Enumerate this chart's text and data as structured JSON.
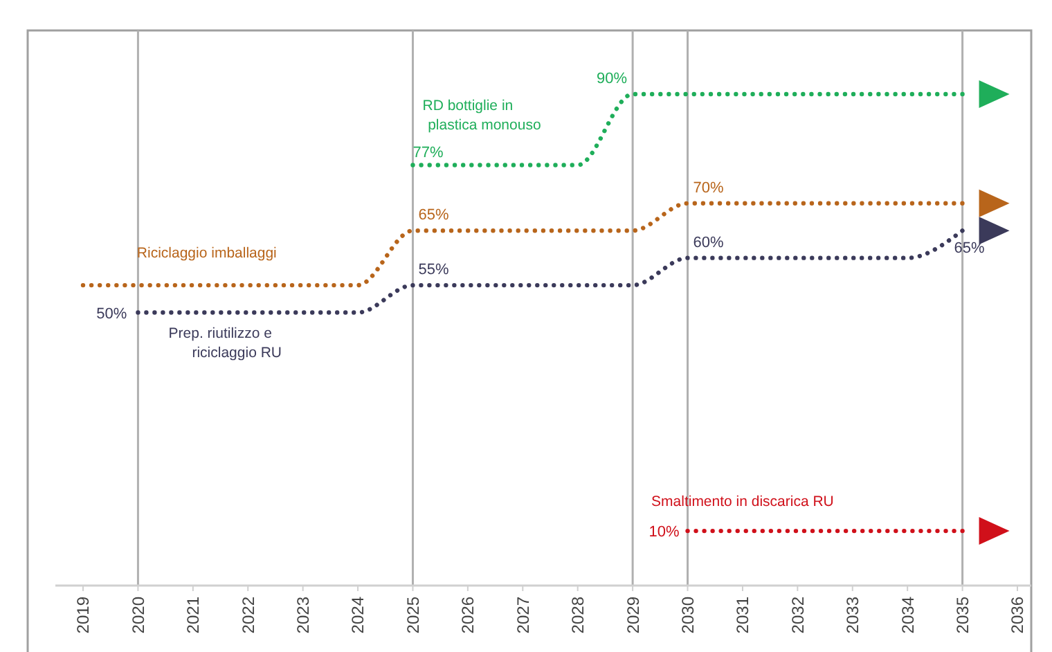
{
  "chart_data": {
    "type": "line",
    "categories": [
      "2019",
      "2020",
      "2021",
      "2022",
      "2023",
      "2024",
      "2025",
      "2026",
      "2027",
      "2028",
      "2029",
      "2030",
      "2031",
      "2032",
      "2033",
      "2034",
      "2035",
      "2036"
    ],
    "tick_labels": "x",
    "marker": "none",
    "line_style": "dotted",
    "series": [
      {
        "name": "RD bottiglie in plastica monouso",
        "color": "#1fae5a",
        "values": [
          null,
          null,
          null,
          null,
          null,
          null,
          77,
          77,
          77,
          77,
          90,
          90,
          90,
          90,
          90,
          90,
          90,
          null
        ],
        "value_labels": [
          null,
          null,
          null,
          null,
          null,
          null,
          "77%",
          null,
          null,
          null,
          "90%",
          null,
          null,
          null,
          null,
          null,
          null,
          null
        ]
      },
      {
        "name": "Riciclaggio imballaggi",
        "color": "#b8651b",
        "values": [
          55,
          55,
          55,
          55,
          55,
          55,
          65,
          65,
          65,
          65,
          65,
          70,
          70,
          70,
          70,
          70,
          70,
          null
        ],
        "value_labels": [
          null,
          null,
          null,
          null,
          null,
          null,
          "65%",
          null,
          null,
          null,
          null,
          "70%",
          null,
          null,
          null,
          null,
          null,
          null
        ]
      },
      {
        "name": "Prep. riutilizzo e riciclaggio RU",
        "color": "#3b3a5a",
        "values": [
          null,
          50,
          50,
          50,
          50,
          50,
          55,
          55,
          55,
          55,
          55,
          60,
          60,
          60,
          60,
          60,
          65,
          null
        ],
        "value_labels": [
          null,
          "50%",
          null,
          null,
          null,
          null,
          "55%",
          null,
          null,
          null,
          null,
          "60%",
          null,
          null,
          null,
          null,
          "65%",
          null
        ]
      },
      {
        "name": "Smaltimento in discarica RU",
        "color": "#d0101a",
        "values": [
          null,
          null,
          null,
          null,
          null,
          null,
          null,
          null,
          null,
          null,
          null,
          10,
          10,
          10,
          10,
          10,
          10,
          null
        ],
        "value_labels": [
          null,
          null,
          null,
          null,
          null,
          null,
          null,
          null,
          null,
          null,
          null,
          "10%",
          null,
          null,
          null,
          null,
          null,
          null
        ]
      }
    ],
    "ref_lines": [
      {
        "axis": "x",
        "value": "2020",
        "color": "#b0b0b0"
      },
      {
        "axis": "x",
        "value": "2025",
        "color": "#b0b0b0"
      },
      {
        "axis": "x",
        "value": "2029",
        "color": "#b0b0b0"
      },
      {
        "axis": "x",
        "value": "2030",
        "color": "#b0b0b0"
      },
      {
        "axis": "x",
        "value": "2035",
        "color": "#b0b0b0"
      }
    ]
  }
}
